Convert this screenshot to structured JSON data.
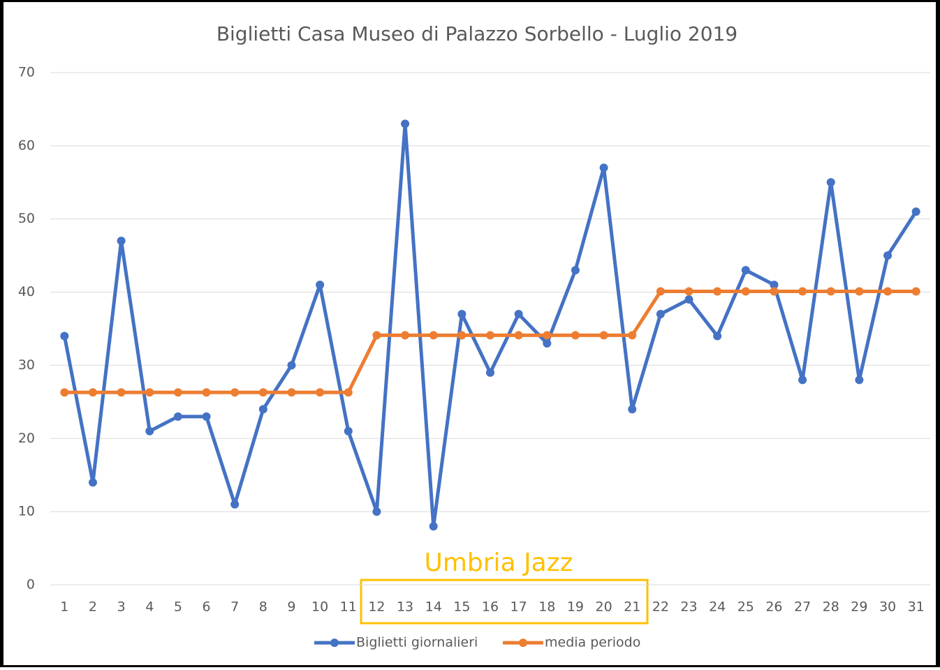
{
  "chart_data": {
    "type": "line",
    "title": "Biglietti Casa Museo di Palazzo Sorbello - Luglio 2019",
    "categories": [
      "1",
      "2",
      "3",
      "4",
      "5",
      "6",
      "7",
      "8",
      "9",
      "10",
      "11",
      "12",
      "13",
      "14",
      "15",
      "16",
      "17",
      "18",
      "19",
      "20",
      "21",
      "22",
      "23",
      "24",
      "25",
      "26",
      "27",
      "28",
      "29",
      "30",
      "31"
    ],
    "series": [
      {
        "name": "Biglietti giornalieri",
        "color": "#4472c4",
        "values": [
          34,
          14,
          47,
          21,
          23,
          23,
          11,
          24,
          30,
          41,
          21,
          10,
          63,
          8,
          37,
          29,
          37,
          33,
          43,
          57,
          24,
          37,
          39,
          34,
          43,
          41,
          28,
          55,
          28,
          45,
          51
        ]
      },
      {
        "name": "media periodo",
        "color": "#ed7d31",
        "values": [
          26.3,
          26.3,
          26.3,
          26.3,
          26.3,
          26.3,
          26.3,
          26.3,
          26.3,
          26.3,
          26.3,
          34.1,
          34.1,
          34.1,
          34.1,
          34.1,
          34.1,
          34.1,
          34.1,
          34.1,
          34.1,
          40.1,
          40.1,
          40.1,
          40.1,
          40.1,
          40.1,
          40.1,
          40.1,
          40.1,
          40.1
        ]
      }
    ],
    "ylim": [
      0,
      70
    ],
    "yticks": [
      0,
      10,
      20,
      30,
      40,
      50,
      60,
      70
    ],
    "grid": true,
    "legend": "bottom",
    "annotation": "Umbria Jazz"
  }
}
